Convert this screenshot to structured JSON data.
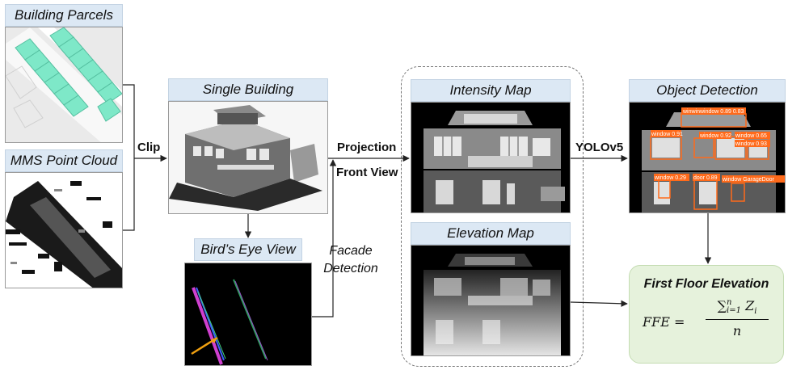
{
  "panels": {
    "building_parcels": "Building Parcels",
    "mms_point_cloud": "MMS Point Cloud",
    "single_building": "Single Building",
    "birds_eye_view": "Bird’s Eye View",
    "intensity_map": "Intensity Map",
    "elevation_map": "Elevation Map",
    "object_detection": "Object Detection"
  },
  "arrows": {
    "clip": "Clip",
    "projection": "Projection",
    "front_view": "Front View",
    "facade_detection_line1": "Facade",
    "facade_detection_line2": "Detection",
    "yolov5": "YOLOv5"
  },
  "result": {
    "title": "First Floor Elevation",
    "formula_lhs": "FFE =",
    "numerator_sum": "∑",
    "numerator_upper": "n",
    "numerator_lower": "i=1",
    "numerator_var": "Z",
    "numerator_sub": "i",
    "denominator": "n"
  },
  "detections": [
    {
      "label": "winwinwindow 0.89 0.83"
    },
    {
      "label": "window 0.91"
    },
    {
      "label": "window 0.92"
    },
    {
      "label": "window 0.65"
    },
    {
      "label": "window 0.93"
    },
    {
      "label": "window 0.29"
    },
    {
      "label": "door 0.89"
    },
    {
      "label": "window GarageDoor"
    }
  ],
  "colors": {
    "title_bg": "#dce8f4",
    "result_bg": "#e6f2dc",
    "detection_box": "#ff6a1a",
    "arrow": "#222222"
  }
}
